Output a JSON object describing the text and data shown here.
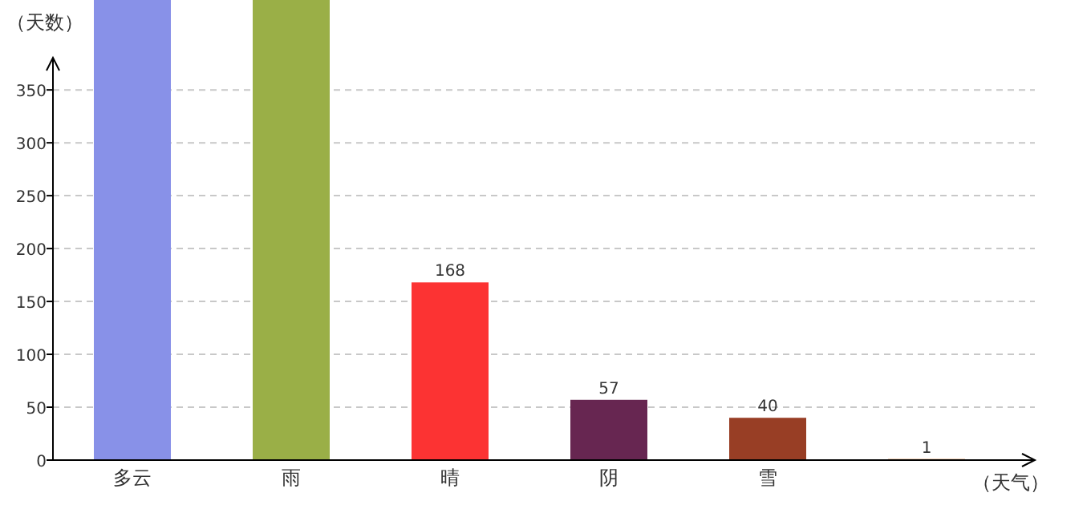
{
  "chart_data": {
    "type": "bar",
    "ylabel": "（天数）",
    "xlabel": "（天气）",
    "categories": [
      "多云",
      "雨",
      "晴",
      "阴",
      "雪",
      null
    ],
    "values": [
      435,
      435,
      168,
      57,
      40,
      1
    ],
    "colors": [
      "#8891e8",
      "#9aaf47",
      "#fc3333",
      "#672651",
      "#983e25",
      "#d2691e"
    ],
    "value_labels": [
      null,
      null,
      "168",
      "57",
      "40",
      "1"
    ],
    "ylim": [
      0,
      435
    ],
    "yticks": [
      0,
      50,
      100,
      150,
      200,
      250,
      300,
      350
    ],
    "grid": "y"
  }
}
